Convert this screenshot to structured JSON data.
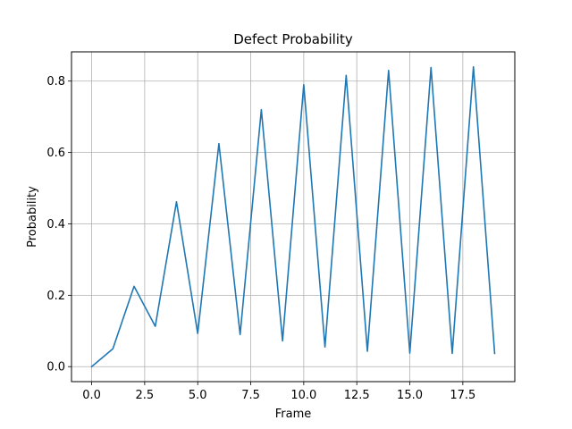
{
  "chart_data": {
    "type": "line",
    "title": "Defect Probability",
    "xlabel": "Frame",
    "ylabel": "Probability",
    "xlim": [
      -0.95,
      19.95
    ],
    "ylim": [
      -0.042,
      0.882
    ],
    "grid": true,
    "x_ticks": [
      0.0,
      2.5,
      5.0,
      7.5,
      10.0,
      12.5,
      15.0,
      17.5
    ],
    "x_tick_labels": [
      "0.0",
      "2.5",
      "5.0",
      "7.5",
      "10.0",
      "12.5",
      "15.0",
      "17.5"
    ],
    "y_ticks": [
      0.0,
      0.2,
      0.4,
      0.6,
      0.8
    ],
    "y_tick_labels": [
      "0.0",
      "0.2",
      "0.4",
      "0.6",
      "0.8"
    ],
    "series": [
      {
        "color": "#1f77b4",
        "x": [
          0,
          1,
          2,
          3,
          4,
          5,
          6,
          7,
          8,
          9,
          10,
          11,
          12,
          13,
          14,
          15,
          16,
          17,
          18,
          19
        ],
        "y": [
          0.0,
          0.05,
          0.225,
          0.113,
          0.462,
          0.093,
          0.625,
          0.09,
          0.72,
          0.072,
          0.79,
          0.055,
          0.816,
          0.043,
          0.83,
          0.038,
          0.838,
          0.037,
          0.84,
          0.037
        ]
      }
    ]
  }
}
